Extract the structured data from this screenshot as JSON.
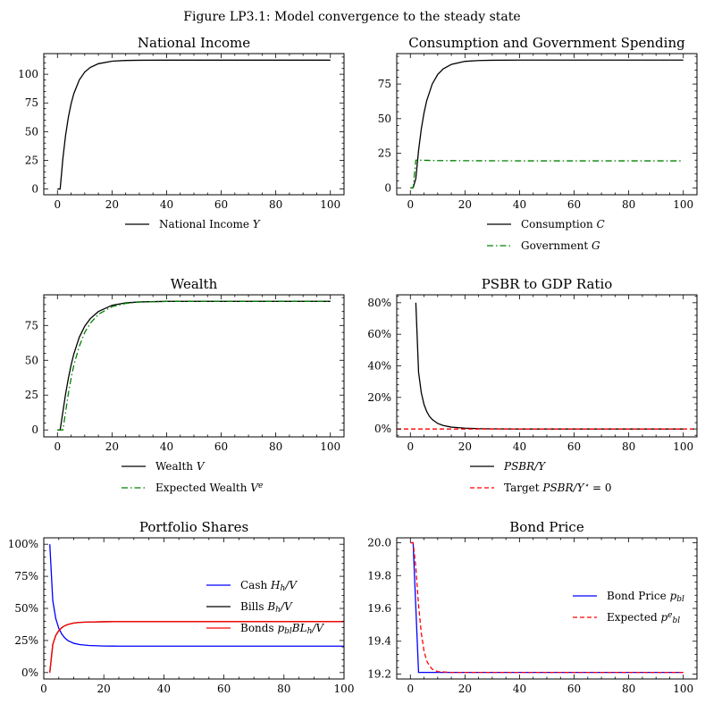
{
  "figure_title": "Figure LP3.1: Model convergence to the steady state",
  "chart_data": [
    {
      "id": "ni",
      "type": "line",
      "title": "National Income",
      "xlim": [
        -5,
        105
      ],
      "ylim": [
        -5,
        118
      ],
      "xticks": [
        0,
        20,
        40,
        60,
        80,
        100
      ],
      "xticklabels": [
        "0",
        "20",
        "40",
        "60",
        "80",
        "100"
      ],
      "yticks": [
        0,
        25,
        50,
        75,
        100
      ],
      "yticklabels": [
        "0",
        "25",
        "50",
        "75",
        "100"
      ],
      "legend_position": "below",
      "series": [
        {
          "name": "National Income Y",
          "color": "#000000",
          "dash": "solid",
          "x": [
            0,
            1,
            2,
            3,
            4,
            5,
            6,
            8,
            10,
            12,
            15,
            20,
            25,
            30,
            40,
            50,
            60,
            80,
            100
          ],
          "y": [
            0,
            0,
            26.7,
            47.0,
            62.5,
            74.2,
            83.1,
            95.0,
            101.9,
            105.9,
            109.2,
            111.4,
            112.0,
            112.2,
            112.3,
            112.3,
            112.3,
            112.3,
            112.3
          ]
        }
      ]
    },
    {
      "id": "cg",
      "type": "line",
      "title": "Consumption and Government Spending",
      "xlim": [
        -5,
        105
      ],
      "ylim": [
        -5,
        97
      ],
      "xticks": [
        0,
        20,
        40,
        60,
        80,
        100
      ],
      "xticklabels": [
        "0",
        "20",
        "40",
        "60",
        "80",
        "100"
      ],
      "yticks": [
        0,
        25,
        50,
        75
      ],
      "yticklabels": [
        "0",
        "25",
        "50",
        "75"
      ],
      "legend_position": "below",
      "series": [
        {
          "name": "Consumption C",
          "color": "#000000",
          "dash": "solid",
          "x": [
            0,
            1,
            2,
            3,
            4,
            5,
            6,
            8,
            10,
            12,
            15,
            20,
            25,
            30,
            40,
            50,
            60,
            80,
            100
          ],
          "y": [
            0,
            0,
            6.7,
            27.0,
            42.5,
            54.2,
            63.1,
            75.0,
            81.9,
            85.9,
            89.2,
            91.4,
            92.0,
            92.2,
            92.3,
            92.3,
            92.3,
            92.3,
            92.3
          ]
        },
        {
          "name": "Government G",
          "color": "#008000",
          "dash": "dashdot",
          "x": [
            0,
            1,
            2,
            3,
            5,
            10,
            20,
            40,
            60,
            80,
            100
          ],
          "y": [
            0,
            0,
            20.0,
            20.0,
            19.9,
            19.7,
            19.6,
            19.5,
            19.5,
            19.5,
            19.5
          ]
        }
      ]
    },
    {
      "id": "w",
      "type": "line",
      "title": "Wealth",
      "xlim": [
        -5,
        105
      ],
      "ylim": [
        -5,
        97
      ],
      "xticks": [
        0,
        20,
        40,
        60,
        80,
        100
      ],
      "xticklabels": [
        "0",
        "20",
        "40",
        "60",
        "80",
        "100"
      ],
      "yticks": [
        0,
        25,
        50,
        75
      ],
      "yticklabels": [
        "0",
        "25",
        "50",
        "75"
      ],
      "legend_position": "below",
      "series": [
        {
          "name": "Wealth V",
          "color": "#000000",
          "dash": "solid",
          "x": [
            0,
            1,
            2,
            3,
            4,
            5,
            6,
            8,
            10,
            12,
            15,
            20,
            25,
            30,
            40,
            50,
            60,
            80,
            100
          ],
          "y": [
            0,
            0,
            13.0,
            26.0,
            37.0,
            46.5,
            54.5,
            66.5,
            74.5,
            79.8,
            85.0,
            89.5,
            91.2,
            91.9,
            92.3,
            92.3,
            92.3,
            92.3,
            92.3
          ]
        },
        {
          "name": "Expected Wealth V^e",
          "color": "#008000",
          "dash": "dashdot",
          "x": [
            0,
            1,
            2,
            3,
            4,
            5,
            6,
            8,
            10,
            12,
            15,
            20,
            25,
            30,
            40,
            50,
            60,
            80,
            100
          ],
          "y": [
            0,
            0,
            0,
            13.0,
            26.0,
            37.0,
            46.5,
            60.0,
            70.0,
            76.5,
            83.0,
            88.5,
            90.8,
            91.8,
            92.3,
            92.3,
            92.3,
            92.3,
            92.3
          ]
        }
      ]
    },
    {
      "id": "psbr",
      "type": "line",
      "title": "PSBR to GDP Ratio",
      "xlim": [
        -5,
        105
      ],
      "ylim": [
        -0.05,
        0.85
      ],
      "xticks": [
        0,
        20,
        40,
        60,
        80,
        100
      ],
      "xticklabels": [
        "0",
        "20",
        "40",
        "60",
        "80",
        "100"
      ],
      "yticks": [
        0,
        0.2,
        0.4,
        0.6,
        0.8
      ],
      "yticklabels": [
        "0%",
        "20%",
        "40%",
        "60%",
        "80%"
      ],
      "legend_position": "below",
      "series": [
        {
          "name": "PSBR/Y",
          "color": "#000000",
          "dash": "solid",
          "x": [
            2,
            3,
            4,
            5,
            6,
            7,
            8,
            10,
            12,
            15,
            20,
            25,
            30,
            40,
            60,
            80,
            100
          ],
          "y": [
            0.8,
            0.36,
            0.23,
            0.155,
            0.11,
            0.08,
            0.06,
            0.035,
            0.022,
            0.012,
            0.005,
            0.002,
            0.001,
            0.0,
            0.0,
            0.0,
            0.0
          ]
        },
        {
          "name": "Target PSBR/Y* = 0",
          "color": "#ff0000",
          "dash": "dashed",
          "x": [
            -5,
            105
          ],
          "y": [
            0,
            0
          ]
        }
      ]
    },
    {
      "id": "ps",
      "type": "line",
      "title": "Portfolio Shares",
      "xlim": [
        0,
        100
      ],
      "ylim": [
        -0.05,
        1.05
      ],
      "xticks": [
        0,
        20,
        40,
        60,
        80,
        100
      ],
      "xticklabels": [
        "0",
        "20",
        "40",
        "60",
        "80",
        "100"
      ],
      "yticks": [
        0,
        0.25,
        0.5,
        0.75,
        1.0
      ],
      "yticklabels": [
        "0%",
        "25%",
        "50%",
        "75%",
        "100%"
      ],
      "legend_position": "center-right",
      "series": [
        {
          "name": "Cash H_h/V",
          "color": "#0000ff",
          "dash": "solid",
          "x": [
            2,
            3,
            4,
            5,
            6,
            7,
            8,
            10,
            12,
            15,
            20,
            25,
            30,
            40,
            60,
            80,
            100
          ],
          "y": [
            1.0,
            0.56,
            0.42,
            0.345,
            0.3,
            0.27,
            0.25,
            0.228,
            0.218,
            0.211,
            0.207,
            0.206,
            0.206,
            0.206,
            0.206,
            0.206,
            0.206
          ]
        },
        {
          "name": "Bills B_h/V",
          "color": "#000000",
          "dash": "solid",
          "x": [
            2,
            3,
            4,
            5,
            6,
            7,
            8,
            10,
            12,
            15,
            20,
            25,
            30,
            40,
            60,
            80,
            100
          ],
          "y": [
            0,
            0.22,
            0.29,
            0.327,
            0.35,
            0.365,
            0.375,
            0.386,
            0.391,
            0.394,
            0.396,
            0.397,
            0.397,
            0.397,
            0.397,
            0.397,
            0.397
          ]
        },
        {
          "name": "Bonds p_bl BL_h/V",
          "color": "#ff0000",
          "dash": "solid",
          "x": [
            2,
            3,
            4,
            5,
            6,
            7,
            8,
            10,
            12,
            15,
            20,
            25,
            30,
            40,
            60,
            80,
            100
          ],
          "y": [
            0,
            0.22,
            0.29,
            0.327,
            0.35,
            0.365,
            0.375,
            0.386,
            0.391,
            0.394,
            0.396,
            0.397,
            0.397,
            0.397,
            0.397,
            0.397,
            0.397
          ]
        }
      ]
    },
    {
      "id": "bp",
      "type": "line",
      "title": "Bond Price",
      "xlim": [
        -5,
        105
      ],
      "ylim": [
        19.17,
        20.03
      ],
      "xticks": [
        0,
        20,
        40,
        60,
        80,
        100
      ],
      "xticklabels": [
        "0",
        "20",
        "40",
        "60",
        "80",
        "100"
      ],
      "yticks": [
        19.2,
        19.4,
        19.6,
        19.8,
        20.0
      ],
      "yticklabels": [
        "19.2",
        "19.4",
        "19.6",
        "19.8",
        "20.0"
      ],
      "legend_position": "center-right",
      "series": [
        {
          "name": "Bond Price p_bl",
          "color": "#0000ff",
          "dash": "solid",
          "x": [
            0,
            1,
            3,
            100
          ],
          "y": [
            20.0,
            20.0,
            19.21,
            19.21
          ]
        },
        {
          "name": "Expected p_bl^e",
          "color": "#ff0000",
          "dash": "dashed",
          "x": [
            0,
            1,
            2,
            3,
            4,
            5,
            6,
            7,
            8,
            10,
            15,
            100
          ],
          "y": [
            20.0,
            20.0,
            19.85,
            19.62,
            19.45,
            19.34,
            19.28,
            19.25,
            19.23,
            19.215,
            19.21,
            19.21
          ]
        }
      ]
    }
  ]
}
